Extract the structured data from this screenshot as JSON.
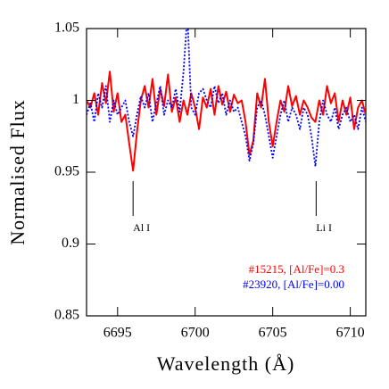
{
  "chart_data": {
    "type": "line",
    "xlabel": "Wavelength (Å)",
    "ylabel": "Normalised Flux",
    "xlim": [
      6693,
      6711
    ],
    "ylim": [
      0.85,
      1.05
    ],
    "xticks": [
      6695,
      6700,
      6705,
      6710
    ],
    "yticks": [
      0.85,
      0.9,
      0.95,
      1,
      1.05
    ],
    "x": [
      6693,
      6693.25,
      6693.5,
      6693.75,
      6694,
      6694.25,
      6694.5,
      6694.75,
      6695,
      6695.25,
      6695.5,
      6695.75,
      6696,
      6696.25,
      6696.5,
      6696.75,
      6697,
      6697.25,
      6697.5,
      6697.75,
      6698,
      6698.25,
      6698.5,
      6698.75,
      6699,
      6699.25,
      6699.5,
      6699.75,
      6700,
      6700.25,
      6700.5,
      6700.75,
      6701,
      6701.25,
      6701.5,
      6701.75,
      6702,
      6702.25,
      6702.5,
      6702.75,
      6703,
      6703.25,
      6703.5,
      6703.75,
      6704,
      6704.25,
      6704.5,
      6704.75,
      6705,
      6705.25,
      6705.5,
      6705.75,
      6706,
      6706.25,
      6706.5,
      6706.75,
      6707,
      6707.25,
      6707.5,
      6707.75,
      6708,
      6708.25,
      6708.5,
      6708.75,
      6709,
      6709.25,
      6709.5,
      6709.75,
      6710,
      6710.25,
      6710.5,
      6710.75,
      6711
    ],
    "series": [
      {
        "name": "#15215, [Al/Fe]=0.3",
        "color": "#ff0000",
        "style": "solid",
        "values": [
          1.0,
          0.995,
          1.005,
          0.99,
          1.012,
          0.998,
          1.02,
          0.992,
          1.005,
          0.985,
          0.99,
          0.97,
          0.951,
          0.978,
          1.0,
          1.01,
          0.995,
          1.015,
          0.99,
          1.008,
          0.996,
          1.018,
          0.992,
          1.002,
          0.985,
          1.0,
          0.99,
          1.005,
          0.995,
          0.98,
          1.002,
          0.995,
          1.008,
          0.99,
          1.01,
          0.997,
          1.006,
          0.992,
          1.004,
          0.998,
          1.0,
          0.985,
          0.962,
          0.972,
          1.005,
          0.995,
          1.015,
          0.985,
          0.968,
          0.985,
          1.0,
          0.992,
          1.01,
          0.996,
          1.003,
          0.99,
          1.0,
          0.995,
          0.988,
          0.985,
          1.0,
          0.99,
          1.01,
          0.998,
          1.005,
          0.985,
          1.0,
          0.99,
          1.002,
          0.98,
          0.995,
          1.0,
          0.99
        ]
      },
      {
        "name": "#23920, [Al/Fe]=0.00",
        "color": "#0000ff",
        "style": "dotted",
        "values": [
          0.99,
          0.998,
          0.985,
          1.005,
          0.995,
          1.01,
          0.985,
          1.0,
          0.99,
          0.995,
          1.0,
          0.985,
          0.975,
          0.99,
          1.003,
          0.995,
          1.005,
          0.985,
          0.998,
          1.01,
          0.99,
          1.0,
          0.995,
          1.008,
          0.992,
          1.02,
          1.06,
          0.995,
          0.99,
          1.005,
          1.008,
          1.0,
          0.995,
          1.01,
          0.998,
          1.005,
          0.99,
          1.0,
          0.992,
          0.995,
          0.985,
          0.975,
          0.958,
          0.97,
          0.995,
          1.0,
          0.99,
          0.975,
          0.96,
          0.975,
          0.99,
          1.0,
          0.985,
          0.995,
          0.99,
          0.98,
          0.995,
          0.99,
          0.975,
          0.954,
          0.985,
          1.0,
          0.99,
          0.985,
          0.995,
          0.98,
          0.99,
          0.995,
          0.985,
          0.99,
          0.98,
          0.995,
          0.985
        ]
      }
    ],
    "annotations": [
      {
        "text": "Al I",
        "x": 6696
      },
      {
        "text": "Li I",
        "x": 6707.8
      }
    ]
  }
}
